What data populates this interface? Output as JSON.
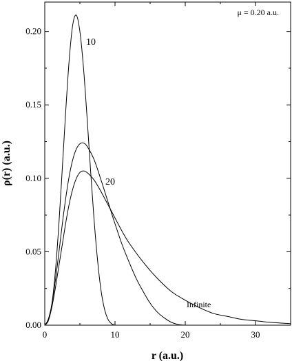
{
  "chart_data": {
    "type": "line",
    "title": "",
    "xlabel": "r (a.u.)",
    "ylabel": "ρ(r) (a.u.)",
    "xlim": [
      0,
      35
    ],
    "ylim": [
      0,
      0.22
    ],
    "xticks": [
      0,
      10,
      20,
      30
    ],
    "xtick_labels": [
      "0",
      "10",
      "20",
      "30"
    ],
    "yticks": [
      0.0,
      0.05,
      0.1,
      0.15,
      0.2
    ],
    "ytick_labels": [
      "0.00",
      "0.05",
      "0.10",
      "0.15",
      "0.20"
    ],
    "grid": false,
    "annotation": "μ = 0.20 a.u.",
    "series": [
      {
        "name": "10",
        "x": [
          0,
          0.5,
          1,
          1.5,
          2,
          2.5,
          3,
          3.5,
          4,
          4.5,
          5,
          5.5,
          6,
          6.5,
          7,
          7.5,
          8,
          8.5,
          9,
          9.5,
          10
        ],
        "y": [
          0,
          0.003,
          0.014,
          0.036,
          0.068,
          0.107,
          0.147,
          0.182,
          0.205,
          0.211,
          0.2,
          0.176,
          0.143,
          0.107,
          0.073,
          0.045,
          0.024,
          0.011,
          0.004,
          0.001,
          0
        ]
      },
      {
        "name": "20",
        "x": [
          0,
          0.5,
          1,
          1.5,
          2,
          2.5,
          3,
          3.5,
          4,
          4.5,
          5,
          5.5,
          6,
          7,
          8,
          9,
          10,
          11,
          12,
          13,
          14,
          15,
          16,
          17,
          18,
          19,
          20
        ],
        "y": [
          0,
          0.004,
          0.014,
          0.03,
          0.049,
          0.069,
          0.087,
          0.102,
          0.113,
          0.12,
          0.1235,
          0.124,
          0.122,
          0.113,
          0.099,
          0.084,
          0.069,
          0.055,
          0.043,
          0.032,
          0.023,
          0.015,
          0.009,
          0.005,
          0.002,
          0.0005,
          0
        ]
      },
      {
        "name": "Infinite",
        "x": [
          0,
          0.5,
          1,
          1.5,
          2,
          2.5,
          3,
          3.5,
          4,
          4.5,
          5,
          5.5,
          6,
          7,
          8,
          9,
          10,
          11,
          12,
          14,
          16,
          18,
          20,
          22,
          24,
          26,
          28,
          30,
          32,
          35
        ],
        "y": [
          0,
          0.003,
          0.012,
          0.025,
          0.04,
          0.055,
          0.07,
          0.083,
          0.093,
          0.1,
          0.104,
          0.105,
          0.104,
          0.099,
          0.091,
          0.082,
          0.073,
          0.064,
          0.056,
          0.043,
          0.032,
          0.023,
          0.017,
          0.012,
          0.008,
          0.006,
          0.004,
          0.003,
          0.002,
          0.001
        ]
      }
    ]
  }
}
